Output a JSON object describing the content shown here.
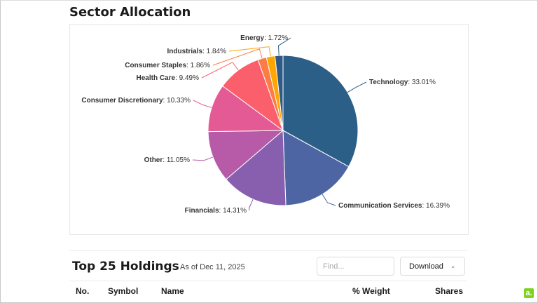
{
  "sector_allocation": {
    "title": "Sector Allocation"
  },
  "chart_data": {
    "type": "pie",
    "start": "12 o'clock, clockwise",
    "slices": [
      {
        "label": "Technology",
        "value": 33.01,
        "display": "33.01%",
        "color": "#2c5f87"
      },
      {
        "label": "Communication Services",
        "value": 16.39,
        "display": "16.39%",
        "color": "#4d66a3"
      },
      {
        "label": "Financials",
        "value": 14.31,
        "display": "14.31%",
        "color": "#875fae"
      },
      {
        "label": "Other",
        "value": 11.05,
        "display": "11.05%",
        "color": "#b75ba8"
      },
      {
        "label": "Consumer Discretionary",
        "value": 10.33,
        "display": "10.33%",
        "color": "#e35a94"
      },
      {
        "label": "Health Care",
        "value": 9.49,
        "display": "9.49%",
        "color": "#fa5f6b"
      },
      {
        "label": "Consumer Staples",
        "value": 1.86,
        "display": "1.86%",
        "color": "#fb7d45"
      },
      {
        "label": "Industrials",
        "value": 1.84,
        "display": "1.84%",
        "color": "#ffa600"
      },
      {
        "label": "Energy",
        "value": 1.72,
        "display": "1.72%",
        "color": "#2d5b85"
      }
    ]
  },
  "holdings": {
    "title": "Top 25 Holdings",
    "as_of": "As of Dec 11, 2025",
    "search_placeholder": "Find...",
    "download_label": "Download",
    "columns": [
      "No.",
      "Symbol",
      "Name",
      "% Weight",
      "Shares"
    ]
  },
  "badge": "a."
}
